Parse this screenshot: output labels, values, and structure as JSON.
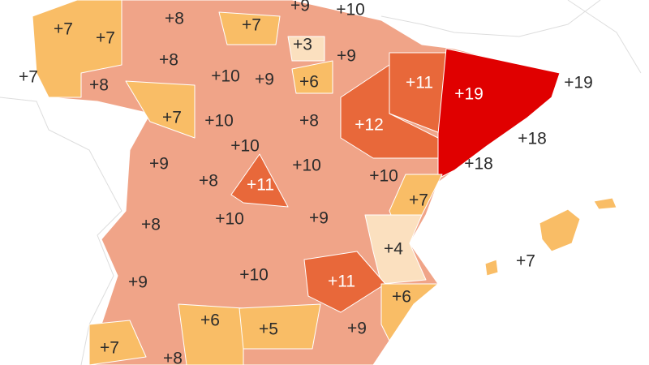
{
  "map": {
    "labels": [
      "+7",
      "+7",
      "+8",
      "+9",
      "+10",
      "+7",
      "+3",
      "+9",
      "+8",
      "+7",
      "+8",
      "+10",
      "+9",
      "+6",
      "+11",
      "+19",
      "+19",
      "+7",
      "+10",
      "+8",
      "+12",
      "+18",
      "+10",
      "+9",
      "+18",
      "+8",
      "+11",
      "+10",
      "+10",
      "+7",
      "+8",
      "+10",
      "+9",
      "+4",
      "+7",
      "+9",
      "+10",
      "+11",
      "+6",
      "+6",
      "+5",
      "+9",
      "+7",
      "+8"
    ]
  }
}
